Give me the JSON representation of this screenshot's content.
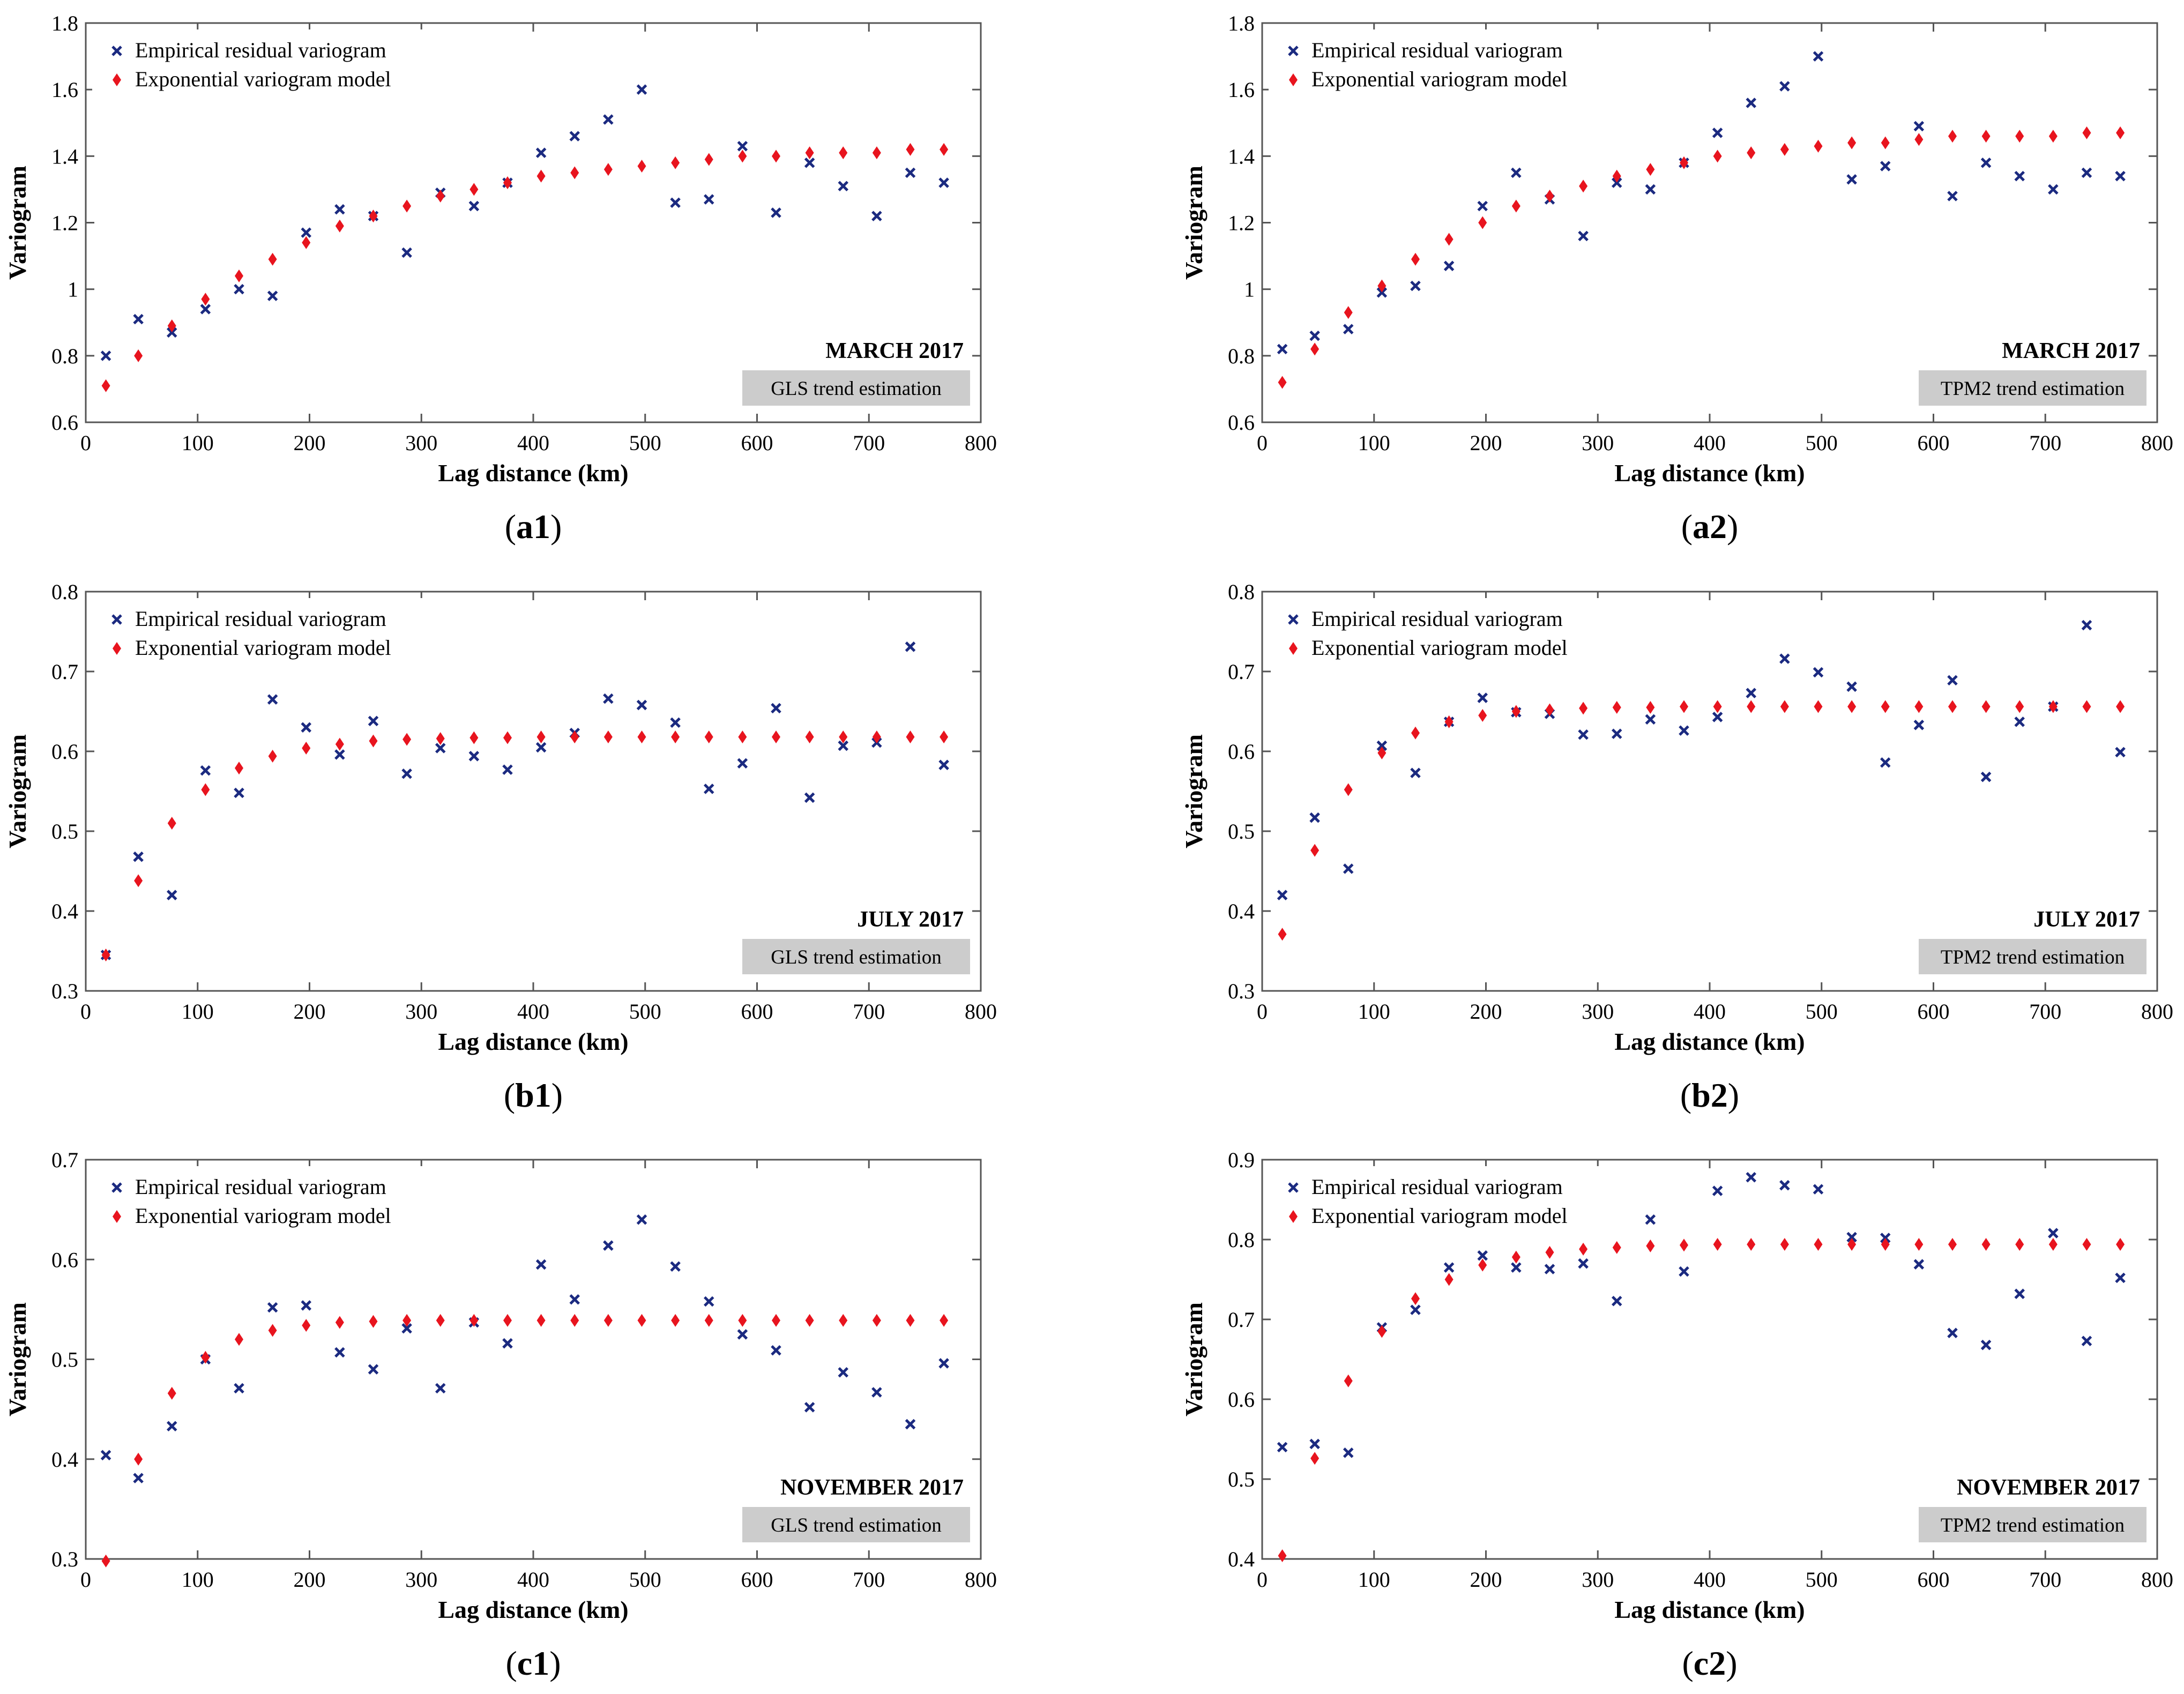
{
  "figure": {
    "legend": {
      "empirical_label": "Empirical residual variogram",
      "model_label": "Exponential variogram model"
    },
    "colors": {
      "empirical": "#1b2a80",
      "model": "#e8141e",
      "badge_bg": "#cccccc"
    }
  },
  "chart_data": [
    {
      "id": "a1",
      "type": "scatter",
      "caption_letter": "a1",
      "month_label": "MARCH 2017",
      "method_label": "GLS trend estimation",
      "xlabel": "Lag distance (km)",
      "ylabel": "Variogram",
      "xlim": [
        0,
        800
      ],
      "ylim": [
        0.6,
        1.8
      ],
      "xticks": [
        0,
        100,
        200,
        300,
        400,
        500,
        600,
        700,
        800
      ],
      "xtick_labels": [
        "0",
        "100",
        "200",
        "300",
        "400",
        "500",
        "600",
        "700",
        "800"
      ],
      "yticks": [
        0.6,
        0.8,
        1,
        1.2,
        1.4,
        1.6,
        1.8
      ],
      "ytick_labels": [
        "0.6",
        "0.8",
        "1",
        "1.2",
        "1.4",
        "1.6",
        "1.8"
      ],
      "x": [
        18,
        47,
        77,
        107,
        137,
        167,
        197,
        227,
        257,
        287,
        317,
        347,
        377,
        407,
        437,
        467,
        497,
        527,
        557,
        587,
        617,
        647,
        677,
        707,
        737,
        767
      ],
      "series": [
        {
          "name": "Empirical residual variogram",
          "marker": "x",
          "values": [
            0.8,
            0.91,
            0.87,
            0.94,
            1.0,
            0.98,
            1.17,
            1.24,
            1.22,
            1.11,
            1.29,
            1.25,
            1.32,
            1.41,
            1.46,
            1.51,
            1.6,
            1.26,
            1.27,
            1.43,
            1.23,
            1.38,
            1.31,
            1.22,
            1.35,
            1.32
          ]
        },
        {
          "name": "Exponential variogram model",
          "marker": "diamond",
          "values": [
            0.71,
            0.8,
            0.89,
            0.97,
            1.04,
            1.09,
            1.14,
            1.19,
            1.22,
            1.25,
            1.28,
            1.3,
            1.32,
            1.34,
            1.35,
            1.36,
            1.37,
            1.38,
            1.39,
            1.4,
            1.4,
            1.41,
            1.41,
            1.41,
            1.42,
            1.42
          ]
        }
      ]
    },
    {
      "id": "a2",
      "type": "scatter",
      "caption_letter": "a2",
      "month_label": "MARCH 2017",
      "method_label": "TPM2 trend estimation",
      "xlabel": "Lag distance (km)",
      "ylabel": "Variogram",
      "xlim": [
        0,
        800
      ],
      "ylim": [
        0.6,
        1.8
      ],
      "xticks": [
        0,
        100,
        200,
        300,
        400,
        500,
        600,
        700,
        800
      ],
      "xtick_labels": [
        "0",
        "100",
        "200",
        "300",
        "400",
        "500",
        "600",
        "700",
        "800"
      ],
      "yticks": [
        0.6,
        0.8,
        1,
        1.2,
        1.4,
        1.6,
        1.8
      ],
      "ytick_labels": [
        "0.6",
        "0.8",
        "1",
        "1.2",
        "1.4",
        "1.6",
        "1.8"
      ],
      "x": [
        18,
        47,
        77,
        107,
        137,
        167,
        197,
        227,
        257,
        287,
        317,
        347,
        377,
        407,
        437,
        467,
        497,
        527,
        557,
        587,
        617,
        647,
        677,
        707,
        737,
        767
      ],
      "series": [
        {
          "name": "Empirical residual variogram",
          "marker": "x",
          "values": [
            0.82,
            0.86,
            0.88,
            0.99,
            1.01,
            1.07,
            1.25,
            1.35,
            1.27,
            1.16,
            1.32,
            1.3,
            1.38,
            1.47,
            1.56,
            1.61,
            1.7,
            1.33,
            1.37,
            1.49,
            1.28,
            1.38,
            1.34,
            1.3,
            1.35,
            1.34
          ]
        },
        {
          "name": "Exponential variogram model",
          "marker": "diamond",
          "values": [
            0.72,
            0.82,
            0.93,
            1.01,
            1.09,
            1.15,
            1.2,
            1.25,
            1.28,
            1.31,
            1.34,
            1.36,
            1.38,
            1.4,
            1.41,
            1.42,
            1.43,
            1.44,
            1.44,
            1.45,
            1.46,
            1.46,
            1.46,
            1.46,
            1.47,
            1.47
          ]
        }
      ]
    },
    {
      "id": "b1",
      "type": "scatter",
      "caption_letter": "b1",
      "month_label": "JULY 2017",
      "method_label": "GLS trend estimation",
      "xlabel": "Lag distance (km)",
      "ylabel": "Variogram",
      "xlim": [
        0,
        800
      ],
      "ylim": [
        0.3,
        0.8
      ],
      "xticks": [
        0,
        100,
        200,
        300,
        400,
        500,
        600,
        700,
        800
      ],
      "xtick_labels": [
        "0",
        "100",
        "200",
        "300",
        "400",
        "500",
        "600",
        "700",
        "800"
      ],
      "yticks": [
        0.3,
        0.4,
        0.5,
        0.6,
        0.7,
        0.8
      ],
      "ytick_labels": [
        "0.3",
        "0.4",
        "0.5",
        "0.6",
        "0.7",
        "0.8"
      ],
      "x": [
        18,
        47,
        77,
        107,
        137,
        167,
        197,
        227,
        257,
        287,
        317,
        347,
        377,
        407,
        437,
        467,
        497,
        527,
        557,
        587,
        617,
        647,
        677,
        707,
        737,
        767
      ],
      "series": [
        {
          "name": "Empirical residual variogram",
          "marker": "x",
          "values": [
            0.345,
            0.468,
            0.42,
            0.576,
            0.548,
            0.665,
            0.63,
            0.596,
            0.638,
            0.572,
            0.604,
            0.594,
            0.577,
            0.605,
            0.623,
            0.666,
            0.658,
            0.636,
            0.553,
            0.585,
            0.654,
            0.542,
            0.607,
            0.611,
            0.731,
            0.583
          ]
        },
        {
          "name": "Exponential variogram model",
          "marker": "diamond",
          "values": [
            0.345,
            0.438,
            0.51,
            0.552,
            0.579,
            0.594,
            0.604,
            0.609,
            0.613,
            0.615,
            0.616,
            0.617,
            0.617,
            0.618,
            0.618,
            0.618,
            0.618,
            0.618,
            0.618,
            0.618,
            0.618,
            0.618,
            0.618,
            0.618,
            0.618,
            0.618
          ]
        }
      ]
    },
    {
      "id": "b2",
      "type": "scatter",
      "caption_letter": "b2",
      "month_label": "JULY 2017",
      "method_label": "TPM2 trend estimation",
      "xlabel": "Lag distance (km)",
      "ylabel": "Variogram",
      "xlim": [
        0,
        800
      ],
      "ylim": [
        0.3,
        0.8
      ],
      "xticks": [
        0,
        100,
        200,
        300,
        400,
        500,
        600,
        700,
        800
      ],
      "xtick_labels": [
        "0",
        "100",
        "200",
        "300",
        "400",
        "500",
        "600",
        "700",
        "800"
      ],
      "yticks": [
        0.3,
        0.4,
        0.5,
        0.6,
        0.7,
        0.8
      ],
      "ytick_labels": [
        "0.3",
        "0.4",
        "0.5",
        "0.6",
        "0.7",
        "0.8"
      ],
      "x": [
        18,
        47,
        77,
        107,
        137,
        167,
        197,
        227,
        257,
        287,
        317,
        347,
        377,
        407,
        437,
        467,
        497,
        527,
        557,
        587,
        617,
        647,
        677,
        707,
        737,
        767
      ],
      "series": [
        {
          "name": "Empirical residual variogram",
          "marker": "x",
          "values": [
            0.42,
            0.517,
            0.453,
            0.607,
            0.573,
            0.637,
            0.667,
            0.649,
            0.647,
            0.621,
            0.622,
            0.64,
            0.626,
            0.643,
            0.673,
            0.716,
            0.699,
            0.681,
            0.586,
            0.633,
            0.689,
            0.568,
            0.637,
            0.656,
            0.758,
            0.599
          ]
        },
        {
          "name": "Exponential variogram model",
          "marker": "diamond",
          "values": [
            0.371,
            0.476,
            0.552,
            0.598,
            0.623,
            0.637,
            0.645,
            0.65,
            0.652,
            0.654,
            0.655,
            0.655,
            0.656,
            0.656,
            0.656,
            0.656,
            0.656,
            0.656,
            0.656,
            0.656,
            0.656,
            0.656,
            0.656,
            0.656,
            0.656,
            0.656
          ]
        }
      ]
    },
    {
      "id": "c1",
      "type": "scatter",
      "caption_letter": "c1",
      "month_label": "NOVEMBER 2017",
      "method_label": "GLS trend estimation",
      "xlabel": "Lag distance (km)",
      "ylabel": "Variogram",
      "xlim": [
        0,
        800
      ],
      "ylim": [
        0.3,
        0.7
      ],
      "xticks": [
        0,
        100,
        200,
        300,
        400,
        500,
        600,
        700,
        800
      ],
      "xtick_labels": [
        "0",
        "100",
        "200",
        "300",
        "400",
        "500",
        "600",
        "700",
        "800"
      ],
      "yticks": [
        0.3,
        0.4,
        0.5,
        0.6,
        0.7
      ],
      "ytick_labels": [
        "0.3",
        "0.4",
        "0.5",
        "0.6",
        "0.7"
      ],
      "x": [
        18,
        47,
        77,
        107,
        137,
        167,
        197,
        227,
        257,
        287,
        317,
        347,
        377,
        407,
        437,
        467,
        497,
        527,
        557,
        587,
        617,
        647,
        677,
        707,
        737,
        767
      ],
      "series": [
        {
          "name": "Empirical residual variogram",
          "marker": "x",
          "values": [
            0.404,
            0.381,
            0.433,
            0.5,
            0.471,
            0.552,
            0.554,
            0.507,
            0.49,
            0.531,
            0.471,
            0.537,
            0.516,
            0.595,
            0.56,
            0.614,
            0.64,
            0.593,
            0.558,
            0.525,
            0.509,
            0.452,
            0.487,
            0.467,
            0.435,
            0.496
          ]
        },
        {
          "name": "Exponential variogram model",
          "marker": "diamond",
          "values": [
            0.298,
            0.4,
            0.466,
            0.502,
            0.52,
            0.529,
            0.534,
            0.537,
            0.538,
            0.539,
            0.539,
            0.539,
            0.539,
            0.539,
            0.539,
            0.539,
            0.539,
            0.539,
            0.539,
            0.539,
            0.539,
            0.539,
            0.539,
            0.539,
            0.539,
            0.539
          ]
        }
      ]
    },
    {
      "id": "c2",
      "type": "scatter",
      "caption_letter": "c2",
      "month_label": "NOVEMBER 2017",
      "method_label": "TPM2 trend estimation",
      "xlabel": "Lag distance (km)",
      "ylabel": "Variogram",
      "xlim": [
        0,
        800
      ],
      "ylim": [
        0.4,
        0.9
      ],
      "xticks": [
        0,
        100,
        200,
        300,
        400,
        500,
        600,
        700,
        800
      ],
      "xtick_labels": [
        "0",
        "100",
        "200",
        "300",
        "400",
        "500",
        "600",
        "700",
        "800"
      ],
      "yticks": [
        0.4,
        0.5,
        0.6,
        0.7,
        0.8,
        0.9
      ],
      "ytick_labels": [
        "0.4",
        "0.5",
        "0.6",
        "0.7",
        "0.8",
        "0.9"
      ],
      "x": [
        18,
        47,
        77,
        107,
        137,
        167,
        197,
        227,
        257,
        287,
        317,
        347,
        377,
        407,
        437,
        467,
        497,
        527,
        557,
        587,
        617,
        647,
        677,
        707,
        737,
        767
      ],
      "series": [
        {
          "name": "Empirical residual variogram",
          "marker": "x",
          "values": [
            0.54,
            0.544,
            0.533,
            0.69,
            0.712,
            0.765,
            0.78,
            0.765,
            0.763,
            0.77,
            0.723,
            0.825,
            0.76,
            0.861,
            0.878,
            0.868,
            0.863,
            0.803,
            0.802,
            0.769,
            0.683,
            0.668,
            0.732,
            0.808,
            0.673,
            0.752
          ]
        },
        {
          "name": "Exponential variogram model",
          "marker": "diamond",
          "values": [
            0.404,
            0.526,
            0.623,
            0.685,
            0.726,
            0.75,
            0.768,
            0.778,
            0.784,
            0.788,
            0.79,
            0.792,
            0.793,
            0.794,
            0.794,
            0.794,
            0.794,
            0.794,
            0.794,
            0.794,
            0.794,
            0.794,
            0.794,
            0.794,
            0.794,
            0.794
          ]
        }
      ]
    }
  ]
}
